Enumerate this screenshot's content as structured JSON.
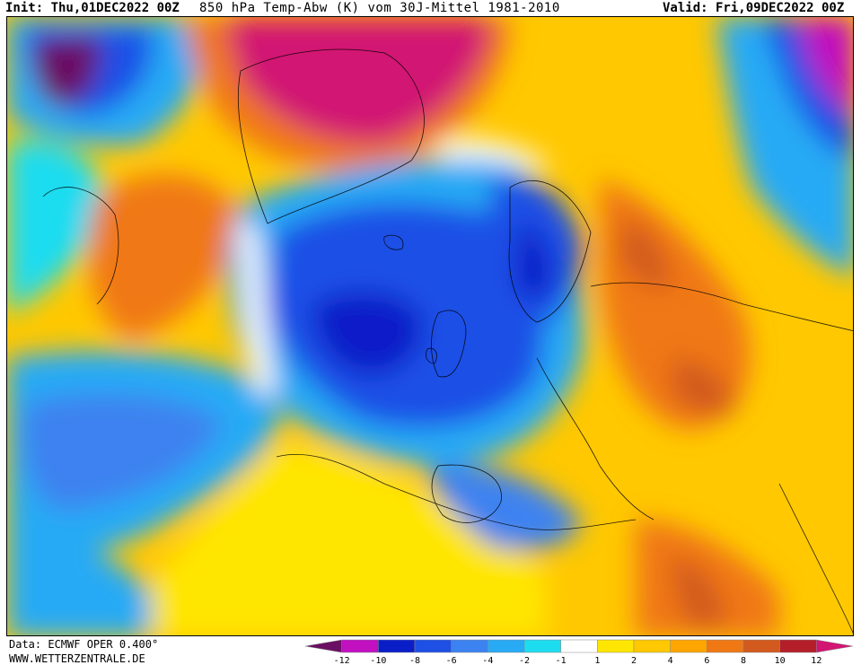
{
  "header": {
    "init": "Init: Thu,01DEC2022 00Z",
    "title": "850 hPa Temp-Abw (K) vom 30J-Mittel 1981-2010",
    "valid": "Valid: Fri,09DEC2022 00Z"
  },
  "footer": {
    "source": "Data: ECMWF OPER 0.400°",
    "site": "WWW.WETTERZENTRALE.DE"
  },
  "legend": {
    "colors": [
      "#6a0f63",
      "#c010c0",
      "#0a1ec8",
      "#1e50e6",
      "#3c82f0",
      "#28aaf5",
      "#1edcf0",
      "#ffffff",
      "#ffe600",
      "#ffc800",
      "#ffa500",
      "#f07814",
      "#d25a1e",
      "#b41e28",
      "#d21473"
    ],
    "ticks": [
      "-12",
      "-10",
      "-8",
      "-6",
      "-4",
      "-2",
      "-1",
      "1",
      "2",
      "4",
      "6",
      "8",
      "10",
      "12"
    ]
  }
}
